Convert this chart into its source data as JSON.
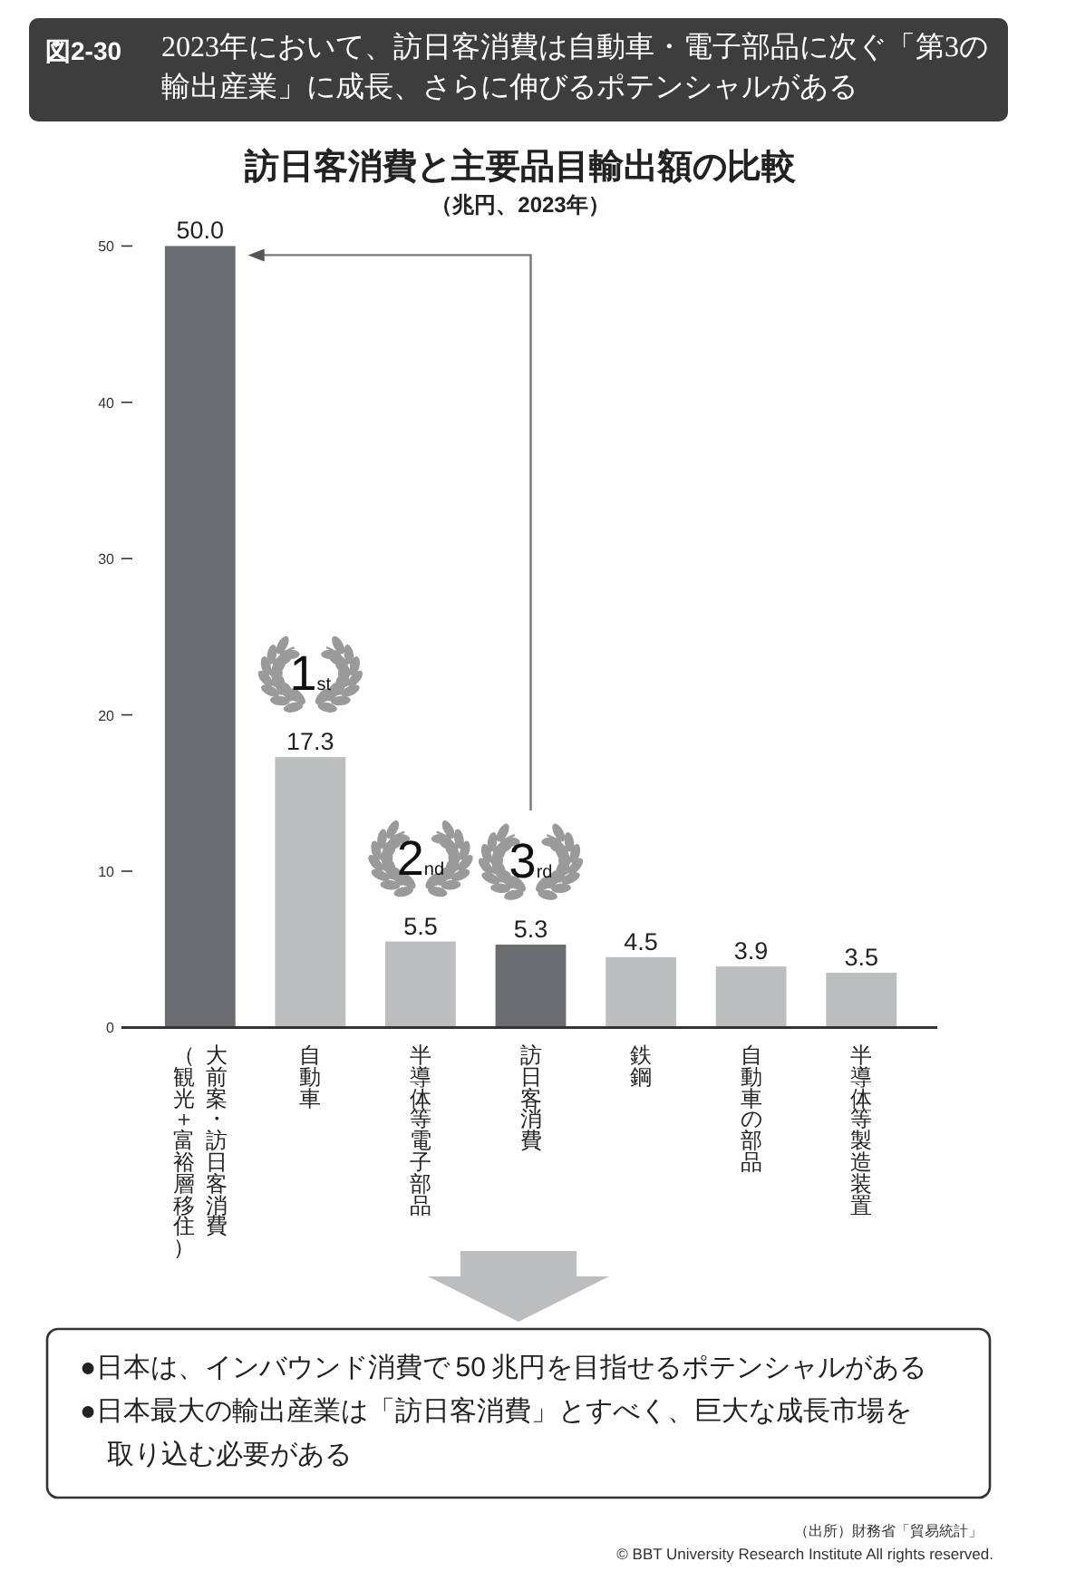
{
  "chart_data": {
    "type": "bar",
    "title": "訪日客消費と主要品目輸出額の比較",
    "subtitle": "（兆円、2023年）",
    "categories": [
      "大前案・訪日客消費（観光＋富裕層移住）",
      "自動車",
      "半導体等電子部品",
      "訪日客消費",
      "鉄鋼",
      "自動車の部品",
      "半導体等製造装置"
    ],
    "values": [
      50.0,
      17.3,
      5.5,
      5.3,
      4.5,
      3.9,
      3.5
    ],
    "colors": [
      "#6b6c70",
      "#bcbdbf",
      "#bcbdbf",
      "#6b6c70",
      "#bcbdbf",
      "#bcbdbf",
      "#bcbdbf"
    ],
    "value_labels": [
      "50.0",
      "17.3",
      "5.5",
      "5.3",
      "4.5",
      "3.9",
      "3.5"
    ],
    "ylim": [
      0,
      50
    ],
    "yticks": [
      0,
      10,
      20,
      30,
      40,
      50
    ],
    "annotations": [
      "図2-30",
      "2023年において、訪日客消費は自動車・電子部品に次ぐ「第3の輸出産業」に成長、さらに伸びるポテンシャルがある",
      {
        "text": "1st",
        "x": "自動車",
        "y": 17.3
      },
      {
        "text": "2nd",
        "x": "半導体等電子部品",
        "y": 5.5
      },
      {
        "text": "3rd",
        "x": "訪日客消費",
        "y": 5.3
      },
      "●日本は、インバウンド消費で 50 兆円を目指せるポテンシャルがある",
      "●日本最大の輸出産業は「訪日客消費」とすべく、巨大な成長市場を取り込む必要がある",
      "（出所）財務省「貿易統計」",
      "© BBT University Research Institute All rights reserved."
    ]
  }
}
